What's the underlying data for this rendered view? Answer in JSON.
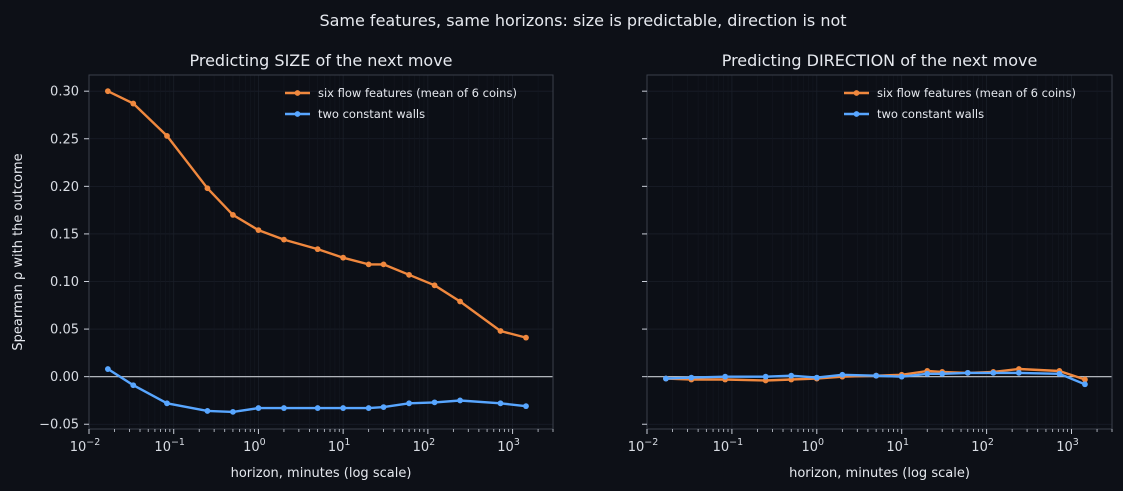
{
  "figure": {
    "suptitle": "Same features, same horizons: size is predictable, direction is not"
  },
  "colors": {
    "background": "#0d1017",
    "axes_face": "#0c0f16",
    "spine": "#3a3f4b",
    "text": "#e6e9ef",
    "flow_series": "#f0883e",
    "walls_series": "#58a6ff",
    "zero_line": "#e6e9ef"
  },
  "chart_data": [
    {
      "type": "line",
      "title": "Predicting SIZE of the next move",
      "xlabel": "horizon, minutes (log scale)",
      "ylabel": "Spearman ρ with the outcome",
      "xscale": "log",
      "xlim": [
        0.01,
        3000
      ],
      "ylim": [
        -0.055,
        0.317
      ],
      "xticks": [
        0.01,
        0.1,
        1,
        10,
        100,
        1000
      ],
      "xtick_labels": [
        [
          "10",
          "−2"
        ],
        [
          "10",
          "−1"
        ],
        [
          "10",
          "0"
        ],
        [
          "10",
          "1"
        ],
        [
          "10",
          "2"
        ],
        [
          "10",
          "3"
        ]
      ],
      "yticks": [
        -0.05,
        0,
        0.05,
        0.1,
        0.15,
        0.2,
        0.25,
        0.3
      ],
      "ytick_labels": [
        "−0.05",
        "0.00",
        "0.05",
        "0.10",
        "0.15",
        "0.20",
        "0.25",
        "0.30"
      ],
      "grid": true,
      "zero_line": true,
      "legend_position": "top-right",
      "x": [
        0.0167,
        0.0333,
        0.0833,
        0.25,
        0.5,
        1,
        2,
        5,
        10,
        20,
        30,
        60,
        120,
        240,
        720,
        1440
      ],
      "series": [
        {
          "name": "six flow features (mean of 6 coins)",
          "color_key": "flow_series",
          "values": [
            0.3,
            0.287,
            0.253,
            0.198,
            0.17,
            0.154,
            0.144,
            0.134,
            0.125,
            0.118,
            0.118,
            0.107,
            0.096,
            0.079,
            0.048,
            0.041
          ]
        },
        {
          "name": "two constant walls",
          "color_key": "walls_series",
          "values": [
            0.008,
            -0.009,
            -0.028,
            -0.036,
            -0.037,
            -0.033,
            -0.033,
            -0.033,
            -0.033,
            -0.033,
            -0.032,
            -0.028,
            -0.027,
            -0.025,
            -0.028,
            -0.031
          ]
        }
      ]
    },
    {
      "type": "line",
      "title": "Predicting DIRECTION of the next move",
      "xlabel": "horizon, minutes (log scale)",
      "ylabel": "",
      "xscale": "log",
      "xlim": [
        0.01,
        3000
      ],
      "ylim": [
        -0.055,
        0.317
      ],
      "xticks": [
        0.01,
        0.1,
        1,
        10,
        100,
        1000
      ],
      "xtick_labels": [
        [
          "10",
          "−2"
        ],
        [
          "10",
          "−1"
        ],
        [
          "10",
          "0"
        ],
        [
          "10",
          "1"
        ],
        [
          "10",
          "2"
        ],
        [
          "10",
          "3"
        ]
      ],
      "yticks": [
        -0.05,
        0,
        0.05,
        0.1,
        0.15,
        0.2,
        0.25,
        0.3
      ],
      "ytick_labels": [],
      "grid": true,
      "zero_line": true,
      "legend_position": "top-right",
      "x": [
        0.0167,
        0.0333,
        0.0833,
        0.25,
        0.5,
        1,
        2,
        5,
        10,
        20,
        30,
        60,
        120,
        240,
        720,
        1440
      ],
      "series": [
        {
          "name": "six flow features (mean of 6 coins)",
          "color_key": "flow_series",
          "values": [
            -0.002,
            -0.003,
            -0.003,
            -0.004,
            -0.003,
            -0.002,
            0.0,
            0.001,
            0.002,
            0.006,
            0.005,
            0.004,
            0.005,
            0.008,
            0.006,
            -0.003
          ]
        },
        {
          "name": "two constant walls",
          "color_key": "walls_series",
          "values": [
            -0.002,
            -0.001,
            0.0,
            0.0,
            0.001,
            -0.001,
            0.002,
            0.001,
            0.0,
            0.003,
            0.003,
            0.004,
            0.004,
            0.004,
            0.003,
            -0.008
          ]
        }
      ]
    }
  ]
}
